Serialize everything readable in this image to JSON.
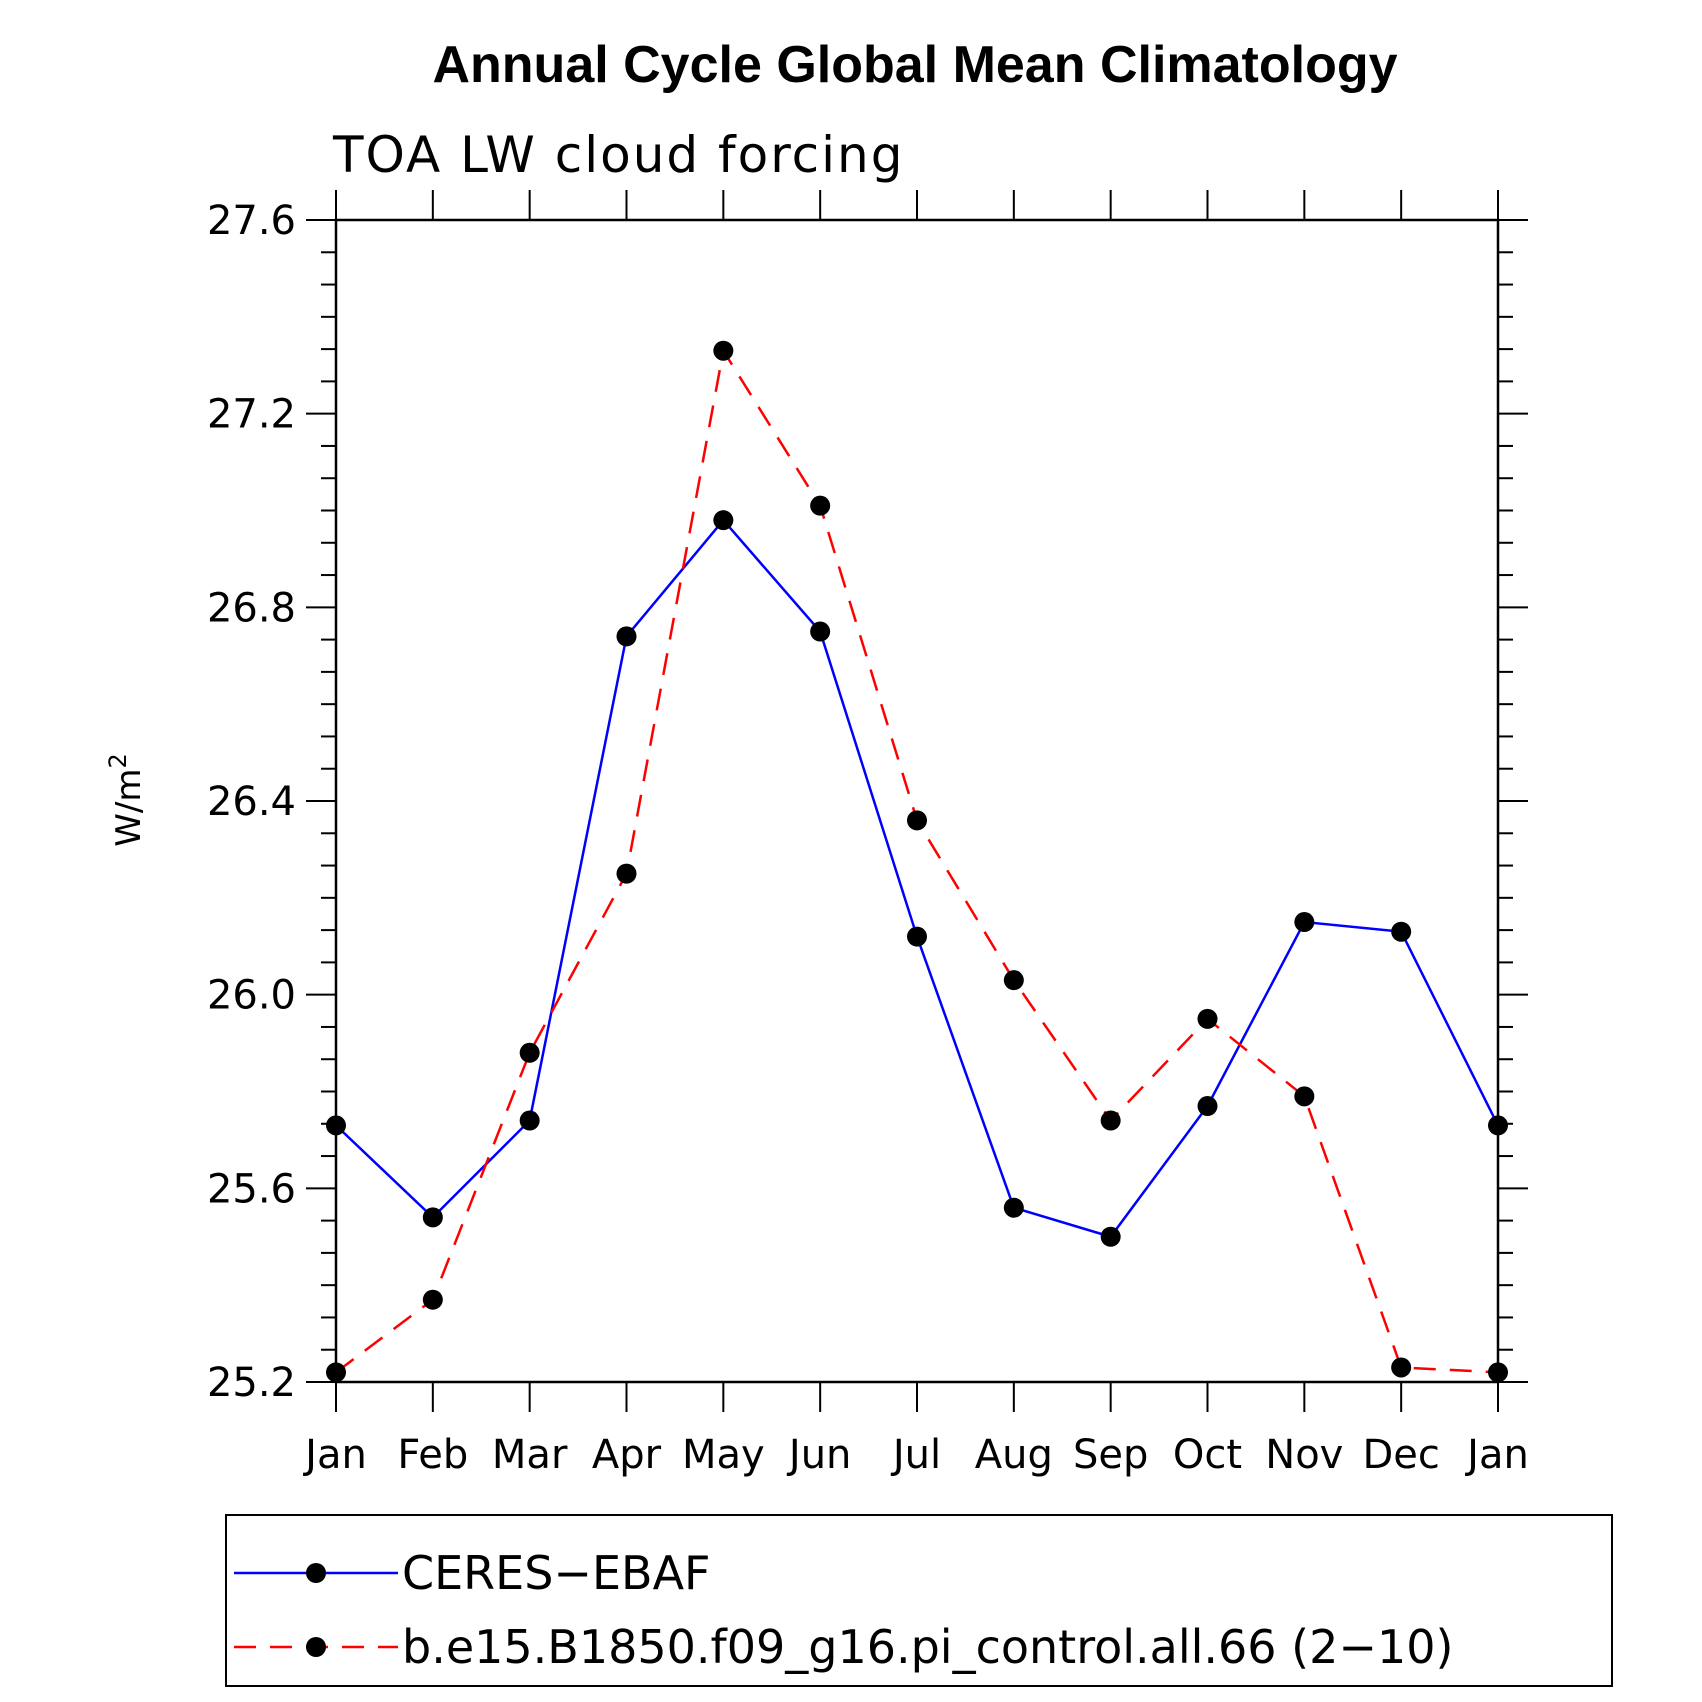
{
  "chart_data": {
    "type": "line",
    "title": "Annual Cycle Global Mean Climatology",
    "subtitle": "TOA LW cloud forcing",
    "ylabel": "W/m",
    "ylabel_superscript": "2",
    "xlabel": "",
    "categories": [
      "Jan",
      "Feb",
      "Mar",
      "Apr",
      "May",
      "Jun",
      "Jul",
      "Aug",
      "Sep",
      "Oct",
      "Nov",
      "Dec",
      "Jan"
    ],
    "ylim": [
      25.2,
      27.6
    ],
    "yticks": [
      "25.2",
      "25.6",
      "26.0",
      "26.4",
      "26.8",
      "27.2",
      "27.6"
    ],
    "grid": false,
    "legend_position": "bottom",
    "series": [
      {
        "name": "CERES−EBAF",
        "color": "#0000ff",
        "style": "solid",
        "marker": "filled-circle",
        "values": [
          25.73,
          25.54,
          25.74,
          26.74,
          26.98,
          26.75,
          26.12,
          25.56,
          25.5,
          25.77,
          26.15,
          26.13,
          25.73
        ]
      },
      {
        "name": "b.e15.B1850.f09_g16.pi_control.all.66 (2−10)",
        "color": "#ff0000",
        "style": "dashed",
        "marker": "filled-circle",
        "values": [
          25.22,
          25.37,
          25.88,
          26.25,
          27.33,
          27.01,
          26.36,
          26.03,
          25.74,
          25.95,
          25.79,
          25.23,
          25.22
        ]
      }
    ]
  }
}
